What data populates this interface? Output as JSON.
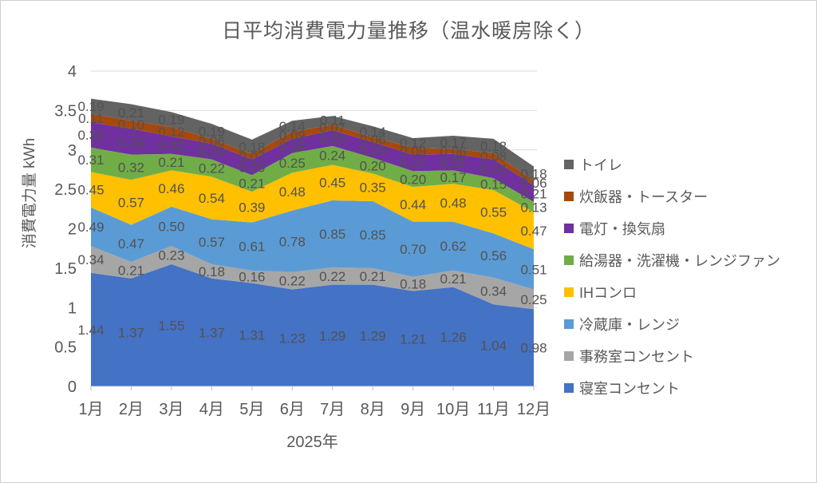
{
  "chart_data": {
    "type": "area",
    "stacked": true,
    "title": "日平均消費電力量推移（温水暖房除く）",
    "xlabel": "2025年",
    "ylabel": "消費電力量 kWh",
    "categories": [
      "1月",
      "2月",
      "3月",
      "4月",
      "5月",
      "6月",
      "7月",
      "8月",
      "9月",
      "10月",
      "11月",
      "12月"
    ],
    "series": [
      {
        "name": "寝室コンセント",
        "color": "#4472C4",
        "values": [
          1.44,
          1.37,
          1.55,
          1.37,
          1.31,
          1.23,
          1.29,
          1.29,
          1.21,
          1.26,
          1.04,
          0.98
        ]
      },
      {
        "name": "事務室コンセント",
        "color": "#A6A6A6",
        "values": [
          0.34,
          0.21,
          0.23,
          0.18,
          0.16,
          0.22,
          0.22,
          0.21,
          0.18,
          0.21,
          0.34,
          0.25
        ]
      },
      {
        "name": "冷蔵庫・レンジ",
        "color": "#5B9BD5",
        "values": [
          0.49,
          0.47,
          0.5,
          0.57,
          0.61,
          0.78,
          0.85,
          0.85,
          0.7,
          0.62,
          0.56,
          0.51
        ]
      },
      {
        "name": "IHコンロ",
        "color": "#FFC000",
        "values": [
          0.45,
          0.57,
          0.46,
          0.54,
          0.39,
          0.48,
          0.45,
          0.35,
          0.44,
          0.48,
          0.55,
          0.47
        ]
      },
      {
        "name": "給湯器・洗濯機・レンジファン",
        "color": "#70AD47",
        "values": [
          0.31,
          0.32,
          0.21,
          0.22,
          0.21,
          0.25,
          0.24,
          0.2,
          0.2,
          0.17,
          0.15,
          0.13
        ]
      },
      {
        "name": "電灯・換気扇",
        "color": "#7030A0",
        "values": [
          0.32,
          0.33,
          0.22,
          0.2,
          0.2,
          0.18,
          0.2,
          0.2,
          0.21,
          0.21,
          0.24,
          0.21
        ]
      },
      {
        "name": "炊飯器・トースター",
        "color": "#A5490D",
        "values": [
          0.11,
          0.1,
          0.12,
          0.06,
          0.07,
          0.09,
          0.07,
          0.06,
          0.09,
          0.06,
          0.08,
          0.06
        ]
      },
      {
        "name": "トイレ",
        "color": "#636363",
        "values": [
          0.19,
          0.21,
          0.19,
          0.19,
          0.18,
          0.14,
          0.11,
          0.14,
          0.12,
          0.17,
          0.18,
          0.18
        ]
      }
    ],
    "ylim": [
      0,
      4
    ],
    "y_ticks": [
      0,
      0.5,
      1,
      1.5,
      2,
      2.5,
      3,
      3.5,
      4
    ],
    "grid": true,
    "legend_position": "right",
    "legend_order_top_to_bottom": [
      "トイレ",
      "炊飯器・トースター",
      "電灯・換気扇",
      "給湯器・洗濯機・レンジファン",
      "IHコンロ",
      "冷蔵庫・レンジ",
      "事務室コンセント",
      "寝室コンセント"
    ]
  }
}
